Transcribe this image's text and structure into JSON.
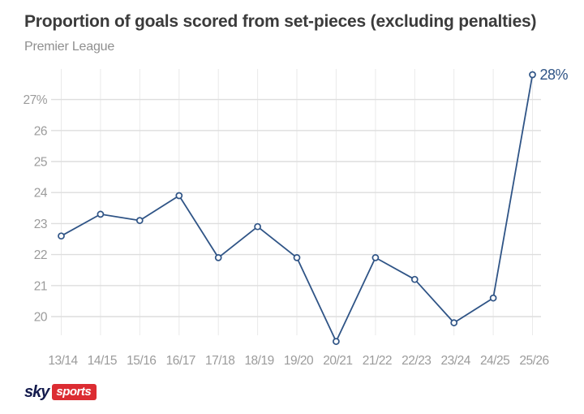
{
  "header": {
    "title": "Proportion of goals scored from set-pieces (excluding penalties)",
    "subtitle": "Premier League"
  },
  "footer": {
    "logo_sky": "sky",
    "logo_sports": "sports"
  },
  "colors": {
    "line": "#2f5486",
    "marker_fill": "#ffffff",
    "grid_horizontal": "#dedede",
    "grid_vertical": "#eaeaea",
    "axis_text": "#9b9b9b",
    "annotation": "#2f5486",
    "title_text": "#3b3b3b",
    "subtitle_text": "#8f8f8f",
    "logo_navy": "#141b4d",
    "logo_red": "#dc2c32"
  },
  "chart_data": {
    "type": "line",
    "title": "Proportion of goals scored from set-pieces (excluding penalties)",
    "subtitle": "Premier League",
    "categories": [
      "13/14",
      "14/15",
      "15/16",
      "16/17",
      "17/18",
      "18/19",
      "19/20",
      "20/21",
      "21/22",
      "22/23",
      "23/24",
      "24/25",
      "25/26"
    ],
    "values": [
      22.6,
      23.3,
      23.1,
      23.9,
      21.9,
      22.9,
      21.9,
      19.2,
      21.9,
      21.2,
      19.8,
      20.6,
      27.8
    ],
    "yticks": [
      20,
      21,
      22,
      23,
      24,
      25,
      26,
      27
    ],
    "ytick_labels": [
      "20",
      "21",
      "22",
      "23",
      "24",
      "25",
      "26",
      "27%"
    ],
    "ylim": [
      19.4,
      28.0
    ],
    "xlabel": "",
    "ylabel": "",
    "grid": true,
    "legend": false,
    "annotation": {
      "text": "28%",
      "point_index": 12
    }
  }
}
